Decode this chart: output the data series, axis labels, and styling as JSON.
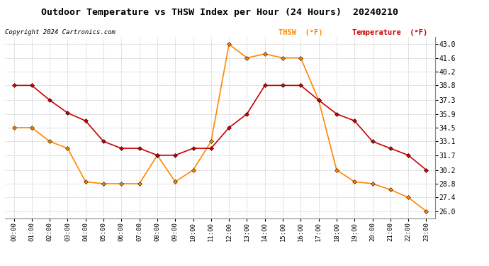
{
  "title": "Outdoor Temperature vs THSW Index per Hour (24 Hours)  20240210",
  "copyright": "Copyright 2024 Cartronics.com",
  "legend_thsw": "THSW  (°F)",
  "legend_temp": "Temperature  (°F)",
  "hours": [
    "00:00",
    "01:00",
    "02:00",
    "03:00",
    "04:00",
    "05:00",
    "06:00",
    "07:00",
    "08:00",
    "09:00",
    "10:00",
    "11:00",
    "12:00",
    "13:00",
    "14:00",
    "15:00",
    "16:00",
    "17:00",
    "18:00",
    "19:00",
    "20:00",
    "21:00",
    "22:00",
    "23:00"
  ],
  "temperature": [
    38.8,
    38.8,
    37.3,
    36.0,
    35.2,
    33.1,
    32.4,
    32.4,
    31.7,
    31.7,
    32.4,
    32.4,
    34.5,
    35.9,
    38.8,
    38.8,
    38.8,
    37.3,
    35.9,
    35.2,
    33.1,
    32.4,
    31.7,
    30.2
  ],
  "thsw": [
    34.5,
    34.5,
    33.1,
    32.4,
    29.0,
    28.8,
    28.8,
    28.8,
    31.7,
    29.0,
    30.2,
    33.1,
    43.0,
    41.6,
    42.0,
    41.6,
    41.6,
    37.3,
    30.2,
    29.0,
    28.8,
    28.2,
    27.4,
    26.0
  ],
  "ylim_min": 25.3,
  "ylim_max": 43.7,
  "yticks": [
    26.0,
    27.4,
    28.8,
    30.2,
    31.7,
    33.1,
    34.5,
    35.9,
    37.3,
    38.8,
    40.2,
    41.6,
    43.0
  ],
  "temp_color": "#cc0000",
  "thsw_color": "#ff8800",
  "title_color": "#000000",
  "bg_color": "#ffffff",
  "plot_bg_color": "#ffffff",
  "grid_color": "#bbbbbb",
  "copyright_color": "#000000"
}
